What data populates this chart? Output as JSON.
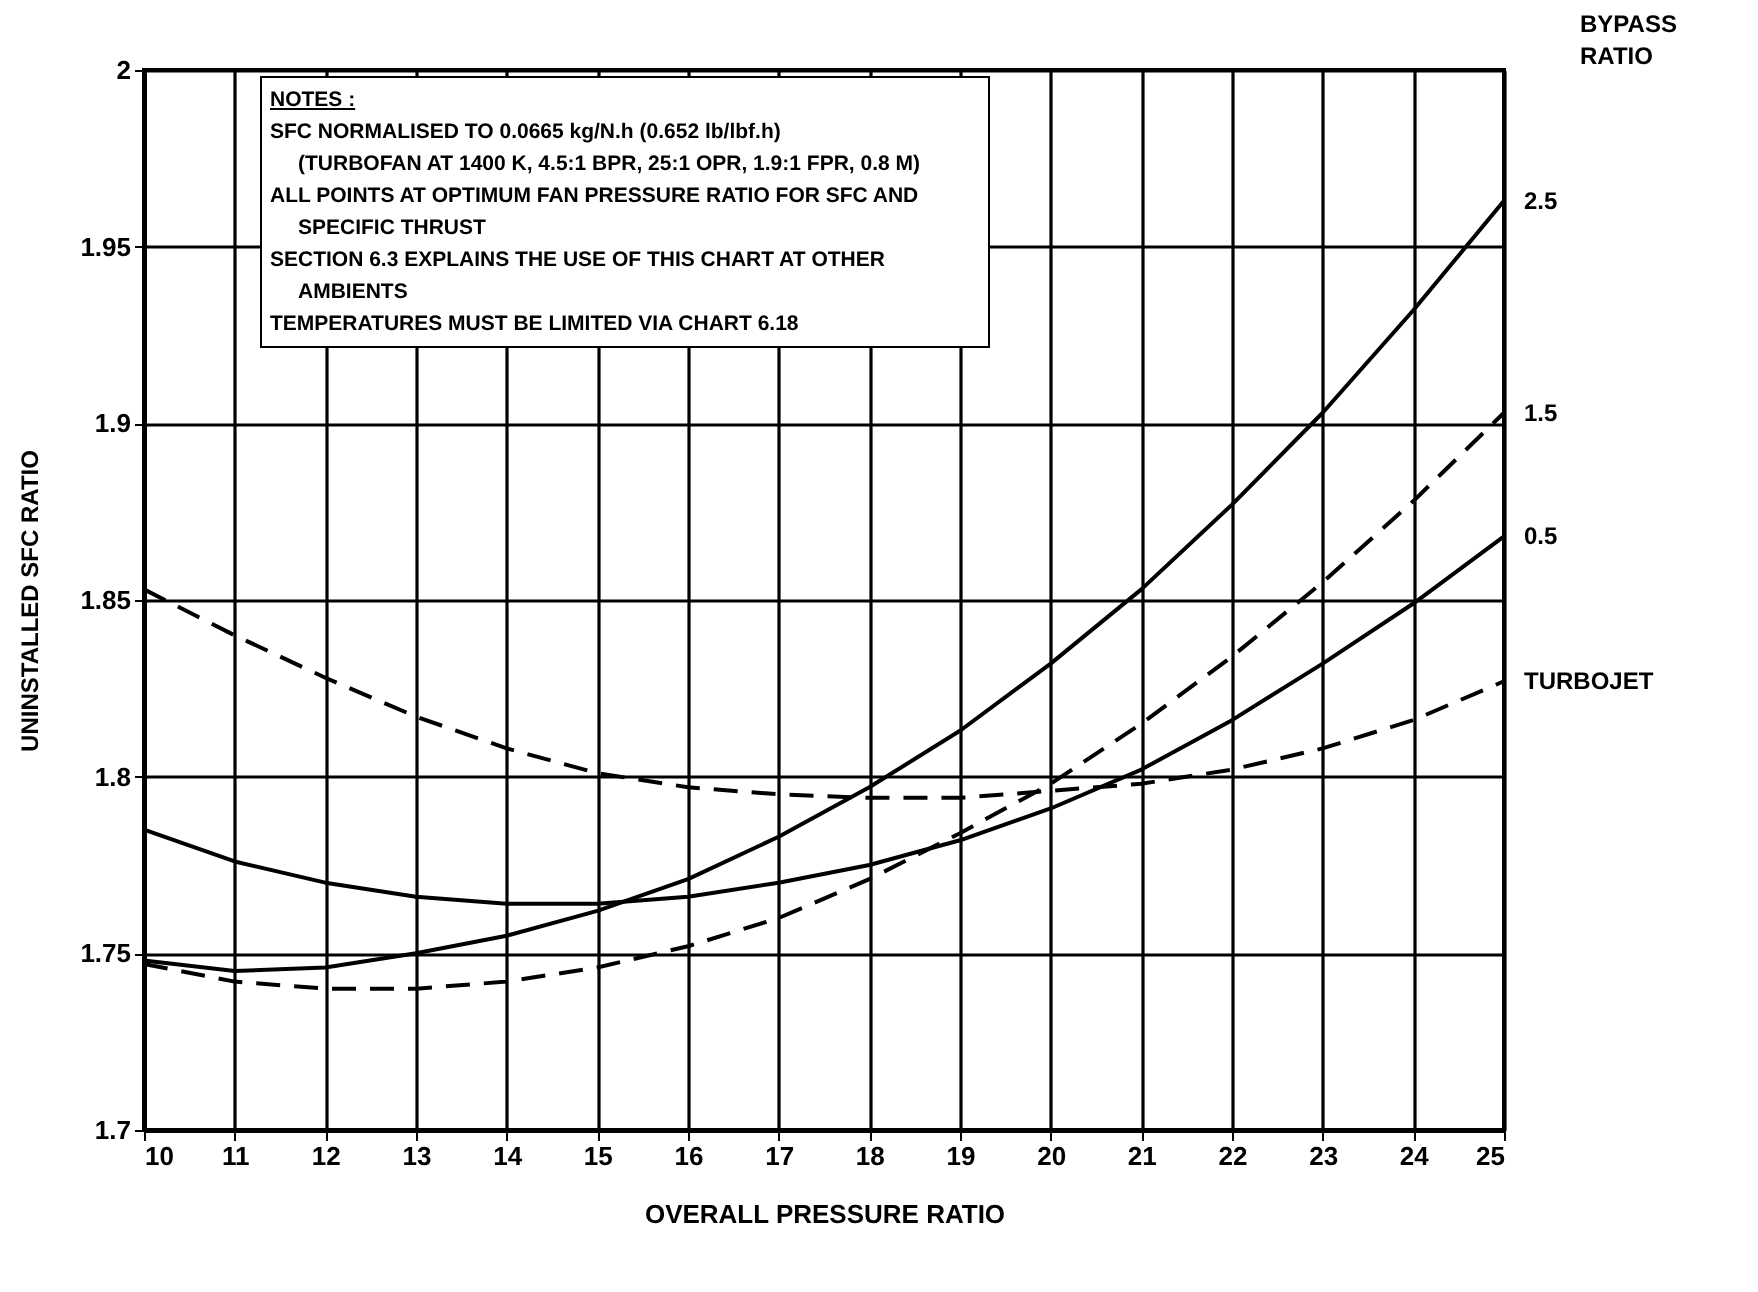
{
  "chart_data": {
    "type": "line",
    "xlabel": "OVERALL PRESSURE RATIO",
    "ylabel": "UNINSTALLED SFC RATIO",
    "legend_title": "BYPASS RATIO",
    "x": [
      10,
      11,
      12,
      13,
      14,
      15,
      16,
      17,
      18,
      19,
      20,
      21,
      22,
      23,
      24,
      25
    ],
    "series": [
      {
        "name": "2.5",
        "color": "#000000",
        "line_style": "solid",
        "values": [
          1.748,
          1.745,
          1.746,
          1.75,
          1.755,
          1.762,
          1.771,
          1.783,
          1.797,
          1.813,
          1.832,
          1.853,
          1.877,
          1.903,
          1.932,
          1.963
        ]
      },
      {
        "name": "1.5",
        "color": "#000000",
        "line_style": "dashed",
        "values": [
          1.747,
          1.742,
          1.74,
          1.74,
          1.742,
          1.746,
          1.752,
          1.76,
          1.771,
          1.784,
          1.798,
          1.815,
          1.834,
          1.855,
          1.878,
          1.903
        ]
      },
      {
        "name": "0.5",
        "color": "#000000",
        "line_style": "solid",
        "values": [
          1.785,
          1.776,
          1.77,
          1.766,
          1.764,
          1.764,
          1.766,
          1.77,
          1.775,
          1.782,
          1.791,
          1.802,
          1.816,
          1.832,
          1.849,
          1.868
        ]
      },
      {
        "name": "TURBOJET",
        "color": "#000000",
        "line_style": "dashed",
        "values": [
          1.853,
          1.84,
          1.828,
          1.817,
          1.808,
          1.801,
          1.797,
          1.795,
          1.794,
          1.794,
          1.796,
          1.798,
          1.802,
          1.808,
          1.816,
          1.827
        ]
      }
    ],
    "xlim": [
      10,
      25
    ],
    "xticks": [
      10,
      11,
      12,
      13,
      14,
      15,
      16,
      17,
      18,
      19,
      20,
      21,
      22,
      23,
      24,
      25
    ],
    "ylim": [
      1.7,
      2
    ],
    "yticks": [
      1.7,
      1.75,
      1.8,
      1.85,
      1.9,
      1.95,
      2
    ],
    "grid": true,
    "marker": "none",
    "legend": false,
    "annotations": [
      "NOTES :",
      "SFC NORMALISED TO 0.0665 kg/N.h (0.652 lb/lbf.h)",
      "(TURBOFAN AT 1400 K, 4.5:1 BPR, 25:1 OPR, 1.9:1 FPR, 0.8 M)",
      "ALL POINTS AT OPTIMUM FAN PRESSURE RATIO FOR SFC AND SPECIFIC THRUST",
      "SECTION 6.3 EXPLAINS THE USE OF THIS CHART AT OTHER AMBIENTS",
      "TEMPERATURES MUST BE LIMITED VIA CHART 6.18"
    ]
  }
}
